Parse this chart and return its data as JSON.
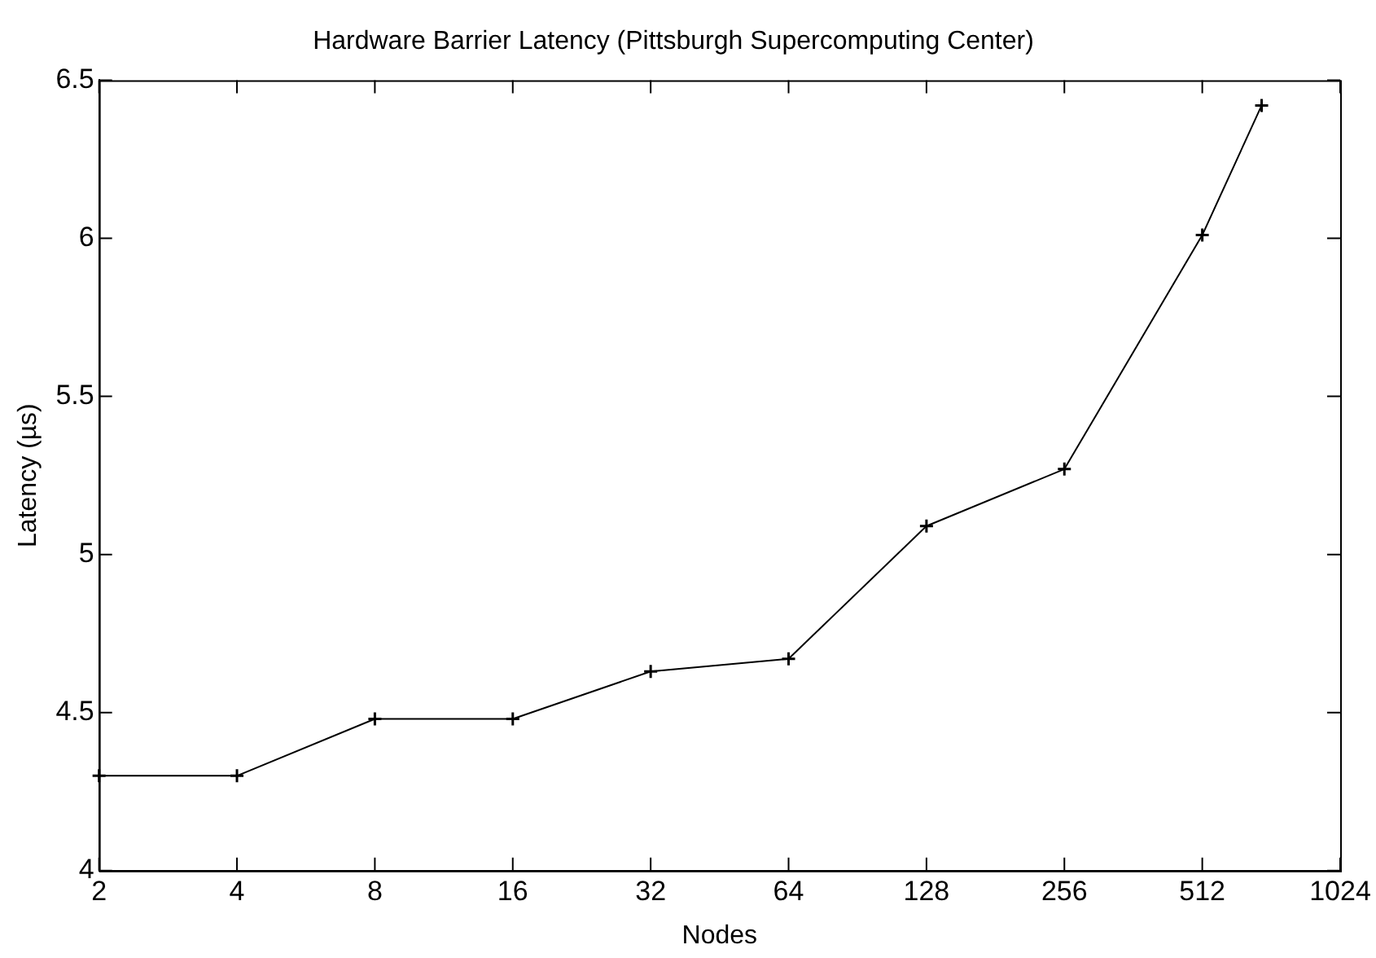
{
  "chart_data": {
    "type": "line",
    "title": "Hardware Barrier Latency (Pittsburgh Supercomputing Center)",
    "xlabel": "Nodes",
    "ylabel": "Latency (µs)",
    "x": [
      2,
      4,
      8,
      16,
      32,
      64,
      128,
      256,
      512,
      690
    ],
    "series": [
      {
        "color": "#000000",
        "values": [
          4.3,
          4.3,
          4.48,
          4.48,
          4.63,
          4.67,
          5.09,
          5.27,
          6.01,
          6.42
        ]
      }
    ],
    "log": "x",
    "xlim": [
      2,
      1024
    ],
    "xticks": [
      2,
      4,
      8,
      16,
      32,
      64,
      128,
      256,
      512,
      1024
    ],
    "ylim": [
      4,
      6.5
    ],
    "yticks": [
      4,
      4.5,
      5,
      5.5,
      6,
      6.5
    ],
    "grid": false,
    "legend": false,
    "marker": "cross",
    "line_style": "solid"
  }
}
